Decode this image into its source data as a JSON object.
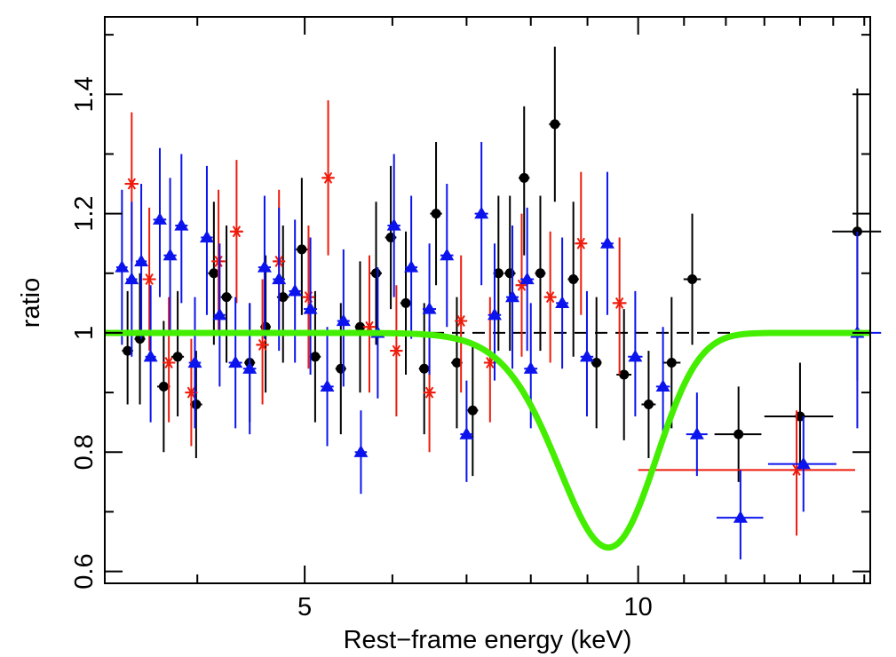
{
  "chart_data": {
    "type": "scatter",
    "title": "",
    "xlabel": "Rest−frame energy (keV)",
    "ylabel": "ratio",
    "xscale": "log",
    "xlim": [
      3.3,
      16.2
    ],
    "ylim": [
      0.58,
      1.53
    ],
    "xticks_major": [
      5,
      10
    ],
    "xtick_labels": [
      "5",
      "10"
    ],
    "xticks_minor": [
      4,
      6,
      7,
      8,
      9,
      11,
      12,
      13,
      14,
      15,
      16
    ],
    "yticks_major": [
      0.6,
      0.8,
      1.0,
      1.2,
      1.4
    ],
    "ytick_labels": [
      "0.6",
      "0.8",
      "1",
      "1.2",
      "1.4"
    ],
    "yticks_minor": [
      0.7,
      0.9,
      1.1,
      1.3,
      1.5
    ],
    "reference_line": {
      "y": 1.0,
      "style": "dashed",
      "color": "#000000"
    },
    "model": {
      "name": "absorption line model",
      "color": "#44ee00",
      "baseline": 1.0,
      "line_center_keV": 9.4,
      "depth": 0.36,
      "sigma_keV": 0.95,
      "x_range": [
        3.3,
        16.2
      ]
    },
    "series": [
      {
        "name": "black",
        "color": "#000000",
        "marker": "circle",
        "points": [
          {
            "x": 3.46,
            "y": 0.97,
            "xerr": 0.04,
            "ylo": 0.88,
            "yhi": 1.07
          },
          {
            "x": 3.55,
            "y": 0.99,
            "xerr": 0.04,
            "ylo": 0.88,
            "yhi": 1.1
          },
          {
            "x": 3.73,
            "y": 0.91,
            "xerr": 0.05,
            "ylo": 0.8,
            "yhi": 1.02
          },
          {
            "x": 3.84,
            "y": 0.96,
            "xerr": 0.05,
            "ylo": 0.86,
            "yhi": 1.07
          },
          {
            "x": 3.99,
            "y": 0.88,
            "xerr": 0.05,
            "ylo": 0.79,
            "yhi": 0.97
          },
          {
            "x": 4.14,
            "y": 1.1,
            "xerr": 0.05,
            "ylo": 0.98,
            "yhi": 1.22
          },
          {
            "x": 4.25,
            "y": 1.06,
            "xerr": 0.05,
            "ylo": 0.95,
            "yhi": 1.18
          },
          {
            "x": 4.46,
            "y": 0.95,
            "xerr": 0.05,
            "ylo": 0.85,
            "yhi": 1.05
          },
          {
            "x": 4.61,
            "y": 1.01,
            "xerr": 0.05,
            "ylo": 0.9,
            "yhi": 1.13
          },
          {
            "x": 4.78,
            "y": 1.06,
            "xerr": 0.06,
            "ylo": 0.95,
            "yhi": 1.18
          },
          {
            "x": 4.97,
            "y": 1.14,
            "xerr": 0.06,
            "ylo": 1.03,
            "yhi": 1.26
          },
          {
            "x": 5.11,
            "y": 0.96,
            "xerr": 0.06,
            "ylo": 0.85,
            "yhi": 1.07
          },
          {
            "x": 5.39,
            "y": 0.94,
            "xerr": 0.06,
            "ylo": 0.83,
            "yhi": 1.05
          },
          {
            "x": 5.61,
            "y": 1.01,
            "xerr": 0.06,
            "ylo": 0.9,
            "yhi": 1.12
          },
          {
            "x": 5.8,
            "y": 1.1,
            "xerr": 0.07,
            "ylo": 0.98,
            "yhi": 1.22
          },
          {
            "x": 5.98,
            "y": 1.16,
            "xerr": 0.07,
            "ylo": 1.04,
            "yhi": 1.28
          },
          {
            "x": 6.17,
            "y": 1.05,
            "xerr": 0.07,
            "ylo": 0.93,
            "yhi": 1.17
          },
          {
            "x": 6.41,
            "y": 0.94,
            "xerr": 0.07,
            "ylo": 0.83,
            "yhi": 1.05
          },
          {
            "x": 6.57,
            "y": 1.2,
            "xerr": 0.08,
            "ylo": 1.08,
            "yhi": 1.32
          },
          {
            "x": 6.86,
            "y": 0.95,
            "xerr": 0.08,
            "ylo": 0.84,
            "yhi": 1.06
          },
          {
            "x": 7.09,
            "y": 0.87,
            "xerr": 0.08,
            "ylo": 0.76,
            "yhi": 0.98
          },
          {
            "x": 7.48,
            "y": 1.1,
            "xerr": 0.08,
            "ylo": 0.97,
            "yhi": 1.23
          },
          {
            "x": 7.66,
            "y": 1.1,
            "xerr": 0.09,
            "ylo": 0.97,
            "yhi": 1.23
          },
          {
            "x": 7.89,
            "y": 1.26,
            "xerr": 0.09,
            "ylo": 1.13,
            "yhi": 1.38
          },
          {
            "x": 8.16,
            "y": 1.1,
            "xerr": 0.09,
            "ylo": 0.97,
            "yhi": 1.23
          },
          {
            "x": 8.41,
            "y": 1.35,
            "xerr": 0.1,
            "ylo": 1.22,
            "yhi": 1.48
          },
          {
            "x": 8.74,
            "y": 1.09,
            "xerr": 0.1,
            "ylo": 0.96,
            "yhi": 1.22
          },
          {
            "x": 9.17,
            "y": 0.95,
            "xerr": 0.1,
            "ylo": 0.84,
            "yhi": 1.06
          },
          {
            "x": 9.71,
            "y": 0.93,
            "xerr": 0.15,
            "ylo": 0.82,
            "yhi": 1.04
          },
          {
            "x": 10.22,
            "y": 0.88,
            "xerr": 0.15,
            "ylo": 0.79,
            "yhi": 0.97
          },
          {
            "x": 10.72,
            "y": 0.95,
            "xerr": 0.2,
            "ylo": 0.84,
            "yhi": 1.06
          },
          {
            "x": 11.19,
            "y": 1.09,
            "xerr": 0.2,
            "ylo": 0.98,
            "yhi": 1.2
          },
          {
            "x": 12.32,
            "y": 0.83,
            "xerr": 0.6,
            "ylo": 0.75,
            "yhi": 0.91
          },
          {
            "x": 14.0,
            "y": 0.86,
            "xerr": 1.0,
            "ylo": 0.77,
            "yhi": 0.95
          },
          {
            "x": 15.77,
            "y": 1.17,
            "xerr": 0.8,
            "ylo": 0.92,
            "yhi": 1.41
          }
        ]
      },
      {
        "name": "red",
        "color": "#ee1c0c",
        "marker": "asterisk",
        "points": [
          {
            "x": 3.49,
            "y": 1.25,
            "xerr": 0.05,
            "ylo": 1.12,
            "yhi": 1.37
          },
          {
            "x": 3.62,
            "y": 1.09,
            "xerr": 0.05,
            "ylo": 0.97,
            "yhi": 1.21
          },
          {
            "x": 3.77,
            "y": 0.95,
            "xerr": 0.05,
            "ylo": 0.85,
            "yhi": 1.06
          },
          {
            "x": 3.95,
            "y": 0.9,
            "xerr": 0.05,
            "ylo": 0.81,
            "yhi": 0.99
          },
          {
            "x": 4.18,
            "y": 1.12,
            "xerr": 0.06,
            "ylo": 1.0,
            "yhi": 1.24
          },
          {
            "x": 4.34,
            "y": 1.17,
            "xerr": 0.06,
            "ylo": 1.05,
            "yhi": 1.29
          },
          {
            "x": 4.58,
            "y": 0.98,
            "xerr": 0.06,
            "ylo": 0.88,
            "yhi": 1.09
          },
          {
            "x": 4.74,
            "y": 1.12,
            "xerr": 0.06,
            "ylo": 1.0,
            "yhi": 1.24
          },
          {
            "x": 5.04,
            "y": 1.06,
            "xerr": 0.06,
            "ylo": 0.94,
            "yhi": 1.18
          },
          {
            "x": 5.25,
            "y": 1.26,
            "xerr": 0.07,
            "ylo": 1.13,
            "yhi": 1.39
          },
          {
            "x": 5.72,
            "y": 1.01,
            "xerr": 0.07,
            "ylo": 0.9,
            "yhi": 1.13
          },
          {
            "x": 6.05,
            "y": 0.97,
            "xerr": 0.08,
            "ylo": 0.86,
            "yhi": 1.08
          },
          {
            "x": 6.48,
            "y": 0.9,
            "xerr": 0.08,
            "ylo": 0.8,
            "yhi": 1.01
          },
          {
            "x": 6.92,
            "y": 1.02,
            "xerr": 0.08,
            "ylo": 0.9,
            "yhi": 1.13
          },
          {
            "x": 7.35,
            "y": 0.95,
            "xerr": 0.09,
            "ylo": 0.85,
            "yhi": 1.06
          },
          {
            "x": 7.85,
            "y": 1.08,
            "xerr": 0.09,
            "ylo": 0.96,
            "yhi": 1.2
          },
          {
            "x": 8.33,
            "y": 1.06,
            "xerr": 0.1,
            "ylo": 0.95,
            "yhi": 1.17
          },
          {
            "x": 8.88,
            "y": 1.15,
            "xerr": 0.1,
            "ylo": 1.03,
            "yhi": 1.27
          },
          {
            "x": 9.62,
            "y": 1.05,
            "xerr": 0.14,
            "ylo": 0.93,
            "yhi": 1.16
          },
          {
            "x": 13.9,
            "y": 0.77,
            "xerr_lo": 3.9,
            "xerr_hi": 1.8,
            "ylo": 0.66,
            "yhi": 0.87
          }
        ]
      },
      {
        "name": "blue",
        "color": "#0c14ee",
        "marker": "triangle",
        "points": [
          {
            "x": 3.42,
            "y": 1.11,
            "xerr": 0.04,
            "ylo": 0.98,
            "yhi": 1.24
          },
          {
            "x": 3.49,
            "y": 1.09,
            "xerr": 0.04,
            "ylo": 0.96,
            "yhi": 1.22
          },
          {
            "x": 3.56,
            "y": 1.12,
            "xerr": 0.04,
            "ylo": 0.99,
            "yhi": 1.25
          },
          {
            "x": 3.63,
            "y": 0.96,
            "xerr": 0.04,
            "ylo": 0.85,
            "yhi": 1.08
          },
          {
            "x": 3.7,
            "y": 1.19,
            "xerr": 0.05,
            "ylo": 1.06,
            "yhi": 1.31
          },
          {
            "x": 3.78,
            "y": 1.13,
            "xerr": 0.05,
            "ylo": 1.0,
            "yhi": 1.26
          },
          {
            "x": 3.87,
            "y": 1.18,
            "xerr": 0.05,
            "ylo": 1.05,
            "yhi": 1.3
          },
          {
            "x": 3.98,
            "y": 0.95,
            "xerr": 0.05,
            "ylo": 0.84,
            "yhi": 1.06
          },
          {
            "x": 4.08,
            "y": 1.16,
            "xerr": 0.05,
            "ylo": 1.03,
            "yhi": 1.28
          },
          {
            "x": 4.19,
            "y": 1.03,
            "xerr": 0.05,
            "ylo": 0.91,
            "yhi": 1.15
          },
          {
            "x": 4.33,
            "y": 0.95,
            "xerr": 0.06,
            "ylo": 0.84,
            "yhi": 1.06
          },
          {
            "x": 4.46,
            "y": 0.94,
            "xerr": 0.06,
            "ylo": 0.83,
            "yhi": 1.05
          },
          {
            "x": 4.6,
            "y": 1.11,
            "xerr": 0.06,
            "ylo": 0.99,
            "yhi": 1.23
          },
          {
            "x": 4.74,
            "y": 1.09,
            "xerr": 0.06,
            "ylo": 0.97,
            "yhi": 1.21
          },
          {
            "x": 4.9,
            "y": 1.07,
            "xerr": 0.06,
            "ylo": 0.95,
            "yhi": 1.19
          },
          {
            "x": 5.06,
            "y": 1.04,
            "xerr": 0.07,
            "ylo": 0.93,
            "yhi": 1.16
          },
          {
            "x": 5.24,
            "y": 0.91,
            "xerr": 0.07,
            "ylo": 0.81,
            "yhi": 1.01
          },
          {
            "x": 5.42,
            "y": 1.02,
            "xerr": 0.07,
            "ylo": 0.91,
            "yhi": 1.14
          },
          {
            "x": 5.62,
            "y": 0.8,
            "xerr": 0.07,
            "ylo": 0.73,
            "yhi": 0.87
          },
          {
            "x": 5.82,
            "y": 1.0,
            "xerr": 0.08,
            "ylo": 0.89,
            "yhi": 1.11
          },
          {
            "x": 6.02,
            "y": 1.18,
            "xerr": 0.08,
            "ylo": 1.06,
            "yhi": 1.3
          },
          {
            "x": 6.24,
            "y": 1.11,
            "xerr": 0.08,
            "ylo": 0.99,
            "yhi": 1.23
          },
          {
            "x": 6.48,
            "y": 1.04,
            "xerr": 0.09,
            "ylo": 0.93,
            "yhi": 1.15
          },
          {
            "x": 6.72,
            "y": 1.13,
            "xerr": 0.09,
            "ylo": 1.01,
            "yhi": 1.25
          },
          {
            "x": 7.0,
            "y": 0.83,
            "xerr": 0.09,
            "ylo": 0.75,
            "yhi": 0.92
          },
          {
            "x": 7.22,
            "y": 1.2,
            "xerr": 0.1,
            "ylo": 1.08,
            "yhi": 1.32
          },
          {
            "x": 7.42,
            "y": 1.03,
            "xerr": 0.1,
            "ylo": 0.92,
            "yhi": 1.15
          },
          {
            "x": 7.7,
            "y": 1.06,
            "xerr": 0.1,
            "ylo": 0.94,
            "yhi": 1.18
          },
          {
            "x": 7.94,
            "y": 1.09,
            "xerr": 0.11,
            "ylo": 0.97,
            "yhi": 1.21
          },
          {
            "x": 8.0,
            "y": 0.94,
            "xerr": 0.11,
            "ylo": 0.84,
            "yhi": 1.05
          },
          {
            "x": 8.54,
            "y": 1.05,
            "xerr": 0.11,
            "ylo": 0.94,
            "yhi": 1.16
          },
          {
            "x": 8.99,
            "y": 0.96,
            "xerr": 0.12,
            "ylo": 0.86,
            "yhi": 1.07
          },
          {
            "x": 9.38,
            "y": 1.15,
            "xerr": 0.12,
            "ylo": 1.03,
            "yhi": 1.27
          },
          {
            "x": 9.94,
            "y": 0.96,
            "xerr": 0.15,
            "ylo": 0.86,
            "yhi": 1.07
          },
          {
            "x": 10.53,
            "y": 0.91,
            "xerr": 0.15,
            "ylo": 0.82,
            "yhi": 1.01
          },
          {
            "x": 11.3,
            "y": 0.83,
            "xerr": 0.25,
            "ylo": 0.76,
            "yhi": 0.9
          },
          {
            "x": 12.37,
            "y": 0.69,
            "xerr": 0.6,
            "ylo": 0.62,
            "yhi": 0.77
          },
          {
            "x": 14.1,
            "y": 0.78,
            "xerr": 1.0,
            "ylo": 0.7,
            "yhi": 0.86
          },
          {
            "x": 15.77,
            "y": 1.0,
            "xerr": 0.8,
            "ylo": 0.84,
            "yhi": 1.17
          }
        ]
      }
    ]
  }
}
